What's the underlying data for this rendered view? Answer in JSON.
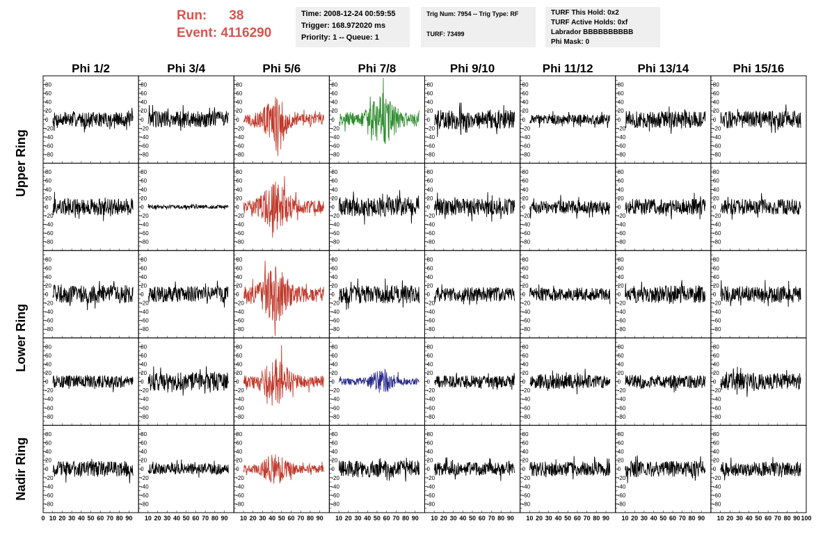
{
  "header": {
    "run_label": "Run:",
    "run_value": "38",
    "event_label": "Event:",
    "event_value": "4116290"
  },
  "info1": {
    "time": "Time: 2008-12-24 00:59:55",
    "trigger": "Trigger: 168.972020 ms",
    "priority": "Priority: 1 -- Queue: 1"
  },
  "info2": {
    "trig": "Trig Num: 7954 -- Trig Type: RF",
    "turf": "TURF: 73499"
  },
  "info3": {
    "hold": "TURF This Hold: 0x2",
    "active": "TURF Active Holds: 0xf",
    "labrador": "Labrador BBBBBBBBBB",
    "phimask": "Phi Mask: 0"
  },
  "colors": {
    "red": "#c0392b",
    "green": "#2e8b2e",
    "blue": "#2a2a8c",
    "black": "#000000",
    "run": "#d9534f"
  },
  "chart_data": {
    "type": "line",
    "columns": [
      "Phi 1/2",
      "Phi 3/4",
      "Phi 5/6",
      "Phi 7/8",
      "Phi 9/10",
      "Phi 11/12",
      "Phi 13/14",
      "Phi 15/16"
    ],
    "row_labels": [
      "Upper Ring",
      "Lower Ring",
      "Nadir Ring"
    ],
    "ylim": [
      -100,
      100
    ],
    "xlim": [
      0,
      100
    ],
    "yticks": [
      80,
      60,
      40,
      20,
      0,
      -20,
      -40,
      -60,
      -80
    ],
    "xticks": [
      0,
      10,
      20,
      30,
      40,
      50,
      60,
      70,
      80,
      90,
      100
    ],
    "xtick_labels": [
      "0",
      "10",
      "20",
      "30",
      "40",
      "50",
      "60",
      "70",
      "80",
      "90",
      "100"
    ],
    "panel_colors": [
      [
        "black",
        "black",
        "red",
        "green",
        "black",
        "black",
        "black",
        "black"
      ],
      [
        "black",
        "black",
        "red",
        "black",
        "black",
        "black",
        "black",
        "black"
      ],
      [
        "black",
        "black",
        "red",
        "black",
        "black",
        "black",
        "black",
        "black"
      ],
      [
        "black",
        "black",
        "red",
        "blue",
        "black",
        "black",
        "black",
        "black"
      ],
      [
        "black",
        "black",
        "red",
        "black",
        "black",
        "black",
        "black",
        "black"
      ]
    ],
    "panel_amplitude": [
      [
        12,
        14,
        22,
        25,
        16,
        8,
        14,
        14
      ],
      [
        14,
        3,
        25,
        16,
        14,
        11,
        13,
        13
      ],
      [
        15,
        13,
        28,
        15,
        12,
        11,
        14,
        13
      ],
      [
        10,
        15,
        22,
        12,
        10,
        12,
        11,
        14
      ],
      [
        13,
        9,
        15,
        14,
        11,
        12,
        13,
        12
      ]
    ],
    "panel_burst": [
      [
        false,
        false,
        true,
        true,
        false,
        false,
        false,
        false
      ],
      [
        false,
        false,
        true,
        false,
        false,
        false,
        false,
        false
      ],
      [
        false,
        false,
        true,
        false,
        false,
        false,
        false,
        false
      ],
      [
        false,
        false,
        true,
        true,
        false,
        false,
        false,
        false
      ],
      [
        false,
        false,
        true,
        false,
        false,
        false,
        false,
        false
      ]
    ]
  }
}
